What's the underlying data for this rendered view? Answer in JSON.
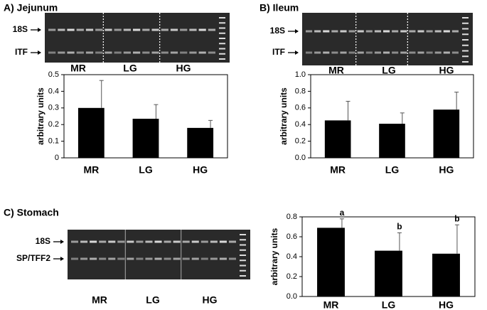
{
  "chart_data": [
    {
      "type": "bar",
      "title": "A) Jejunum",
      "gel_labels": [
        "18S",
        "ITF"
      ],
      "gel_lanes": [
        "MR",
        "LG",
        "HG"
      ],
      "ylabel": "arbitrary units",
      "categories": [
        "MR",
        "LG",
        "HG"
      ],
      "values": [
        0.3,
        0.235,
        0.18
      ],
      "errors": [
        0.165,
        0.085,
        0.045
      ],
      "color": "#000000",
      "ylim": [
        0,
        0.5
      ],
      "yticks": [
        0,
        0.1,
        0.2,
        0.3,
        0.4,
        0.5
      ]
    },
    {
      "type": "bar",
      "title": "B) Ileum",
      "gel_labels": [
        "18S",
        "ITF"
      ],
      "gel_lanes": [
        "MR",
        "LG",
        "HG"
      ],
      "ylabel": "arbitrary units",
      "categories": [
        "MR",
        "LG",
        "HG"
      ],
      "values": [
        0.45,
        0.41,
        0.58
      ],
      "errors": [
        0.23,
        0.13,
        0.21
      ],
      "color": "#000000",
      "ylim": [
        0,
        1.0
      ],
      "yticks": [
        {
          "value": 0,
          "label": "0.0"
        },
        0.2,
        0.4,
        0.6,
        0.8,
        {
          "value": 1.0,
          "label": "1.0"
        }
      ]
    },
    {
      "type": "bar",
      "title": "C) Stomach",
      "gel_labels": [
        "18S",
        "SP/TFF2"
      ],
      "gel_lanes": [
        "MR",
        "LG",
        "HG"
      ],
      "ylabel": "arbitrary units",
      "categories": [
        "MR",
        "LG",
        "HG"
      ],
      "values": [
        0.69,
        0.46,
        0.43
      ],
      "errors": [
        0.09,
        0.18,
        0.29
      ],
      "annotations": [
        "a",
        "b",
        "b"
      ],
      "color": "#000000",
      "ylim": [
        0,
        0.8
      ],
      "yticks": [
        {
          "value": 0,
          "label": "0.0"
        },
        0.2,
        0.4,
        0.6,
        0.8
      ]
    }
  ]
}
